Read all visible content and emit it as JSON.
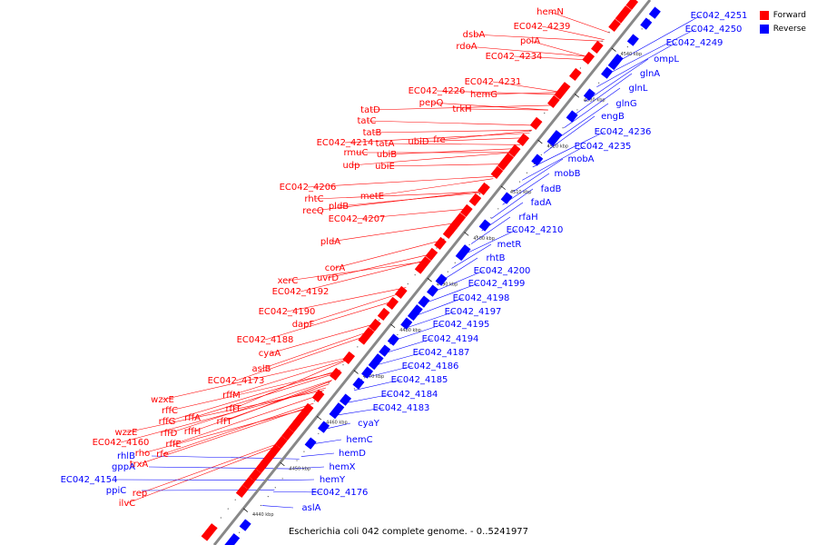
{
  "caption": "Escherichia coli 042 complete genome. - 0..5241977",
  "colors": {
    "forward": "#ff0000",
    "reverse": "#0000ff",
    "backbone": "#888888",
    "leader": "#888888"
  },
  "legend": [
    {
      "name": "forward-legend",
      "label": "Forward",
      "color": "#ff0000"
    },
    {
      "name": "reverse-legend",
      "label": "Reverse",
      "color": "#0000ff"
    }
  ],
  "ticks": [
    {
      "label": "4440 kbp"
    },
    {
      "label": "4450 kbp"
    },
    {
      "label": "4460 kbp"
    },
    {
      "label": "4470 kbp"
    },
    {
      "label": "4480 kbp"
    },
    {
      "label": "4490 kbp"
    },
    {
      "label": "4500 kbp"
    },
    {
      "label": "4510 kbp"
    },
    {
      "label": "4520 kbp"
    },
    {
      "label": "4530 kbp"
    },
    {
      "label": "4540 kbp"
    }
  ],
  "forward_labels": [
    "hemN",
    "EC042_4239",
    "dsbA",
    "polA",
    "rdoA",
    "EC042_4234",
    "EC042_4231",
    "EC042_4226",
    "hemG",
    "pepQ",
    "trkH",
    "tatD",
    "tatC",
    "tatB",
    "EC042_4214",
    "tatA",
    "ubiD",
    "fre",
    "rmuC",
    "ubiB",
    "udp",
    "ubiE",
    "EC042_4206",
    "metE",
    "rhtC",
    "pldB",
    "recQ",
    "EC042_4207",
    "pldA",
    "corA",
    "xerC",
    "uvrD",
    "EC042_4192",
    "EC042_4190",
    "dapF",
    "EC042_4188",
    "cyaA",
    "aslB",
    "EC042_4173",
    "rffM",
    "wzxE",
    "rffT",
    "rffC",
    "rffA",
    "rffG",
    "rffT",
    "rffH",
    "rffD",
    "wzzE",
    "rffE",
    "EC042_4160",
    "rho",
    "rfe",
    "trxA",
    "rep",
    "ilvC"
  ],
  "reverse_labels": [
    "EC042_4251",
    "EC042_4250",
    "EC042_4249",
    "ompL",
    "glnA",
    "glnL",
    "glnG",
    "engB",
    "EC042_4236",
    "EC042_4235",
    "mobA",
    "mobB",
    "fadB",
    "fadA",
    "rfaH",
    "EC042_4210",
    "metR",
    "rhtB",
    "EC042_4200",
    "EC042_4199",
    "EC042_4198",
    "EC042_4197",
    "EC042_4195",
    "EC042_4194",
    "EC042_4187",
    "EC042_4186",
    "EC042_4185",
    "EC042_4184",
    "EC042_4183",
    "cyaY",
    "hemC",
    "hemD",
    "hemX",
    "hemY",
    "EC042_4176",
    "aslA",
    "rhlB",
    "gppA",
    "EC042_4154",
    "ppiC"
  ]
}
